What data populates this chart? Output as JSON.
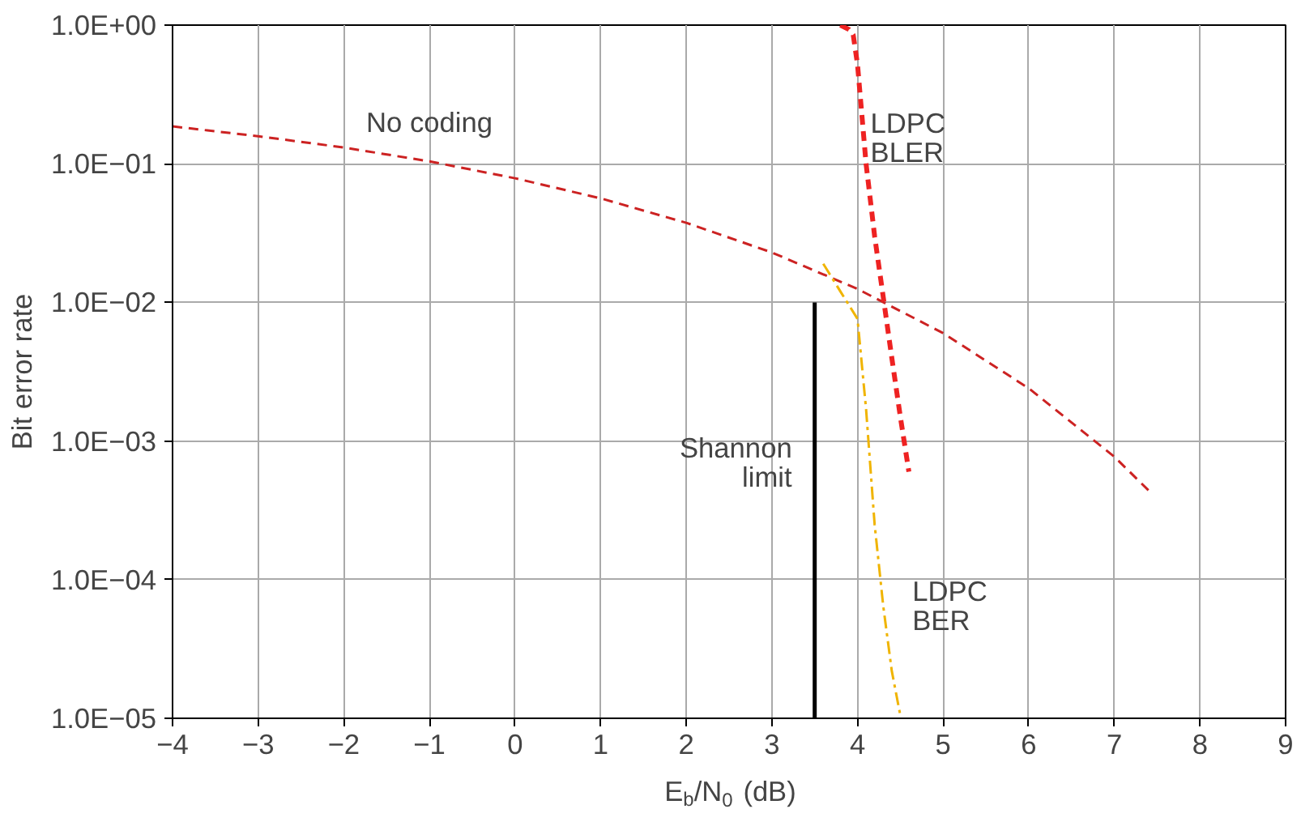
{
  "chart_data": {
    "type": "line",
    "xlabel": "E$_{b}$/N$_{0}$ (dB)",
    "ylabel": "Bit error rate",
    "series": [
      {
        "color": "#cc2222",
        "line_style": "dashed",
        "x": [
          -4,
          -3,
          -2,
          -1,
          0,
          1,
          2,
          3,
          4,
          5,
          6,
          7,
          7.4
        ],
        "values": [
          0.186,
          0.158,
          0.131,
          0.104,
          0.0786,
          0.0563,
          0.0375,
          0.0229,
          0.0125,
          0.006,
          0.0024,
          0.00077,
          0.00044
        ]
      },
      {
        "color": "#ee2222",
        "line_style": "dashed",
        "x": [
          3.8,
          3.9,
          3.95,
          4.0,
          4.1,
          4.2,
          4.3,
          4.4,
          4.5,
          4.6
        ],
        "values": [
          1.0,
          0.93,
          0.85,
          0.52,
          0.1,
          0.03,
          0.011,
          0.004,
          0.0015,
          0.0006
        ]
      },
      {
        "color": "#f0b400",
        "line_style": "dashdot",
        "x": [
          3.6,
          3.8,
          4.0,
          4.1,
          4.2,
          4.3,
          4.4,
          4.5
        ],
        "values": [
          0.019,
          0.012,
          0.0076,
          0.0017,
          0.00025,
          6.5e-05,
          2.2e-05,
          1.05e-05
        ]
      },
      {
        "color": "#000000",
        "line_style": "solid",
        "x": [
          3.5,
          3.5
        ],
        "values": [
          1e-05,
          0.01
        ]
      }
    ],
    "annotations": [
      {
        "text": "No coding",
        "x": -1,
        "y": 0.104
      },
      {
        "text": "LDPC\nBLER",
        "x": 4.0,
        "y": 0.52
      },
      {
        "text": "LDPC\nBER",
        "x": 4.3,
        "y": 6.5e-05
      },
      {
        "text": "Shannon\nlimit",
        "x": 3.5,
        "y": 0.0007
      }
    ],
    "log": "y",
    "grid": true,
    "marker": "none",
    "xlim": [
      -4,
      9
    ],
    "ylim": [
      1e-05,
      1
    ],
    "xticks": [
      {
        "value": -4,
        "label": "−4"
      },
      {
        "value": -3,
        "label": "−3"
      },
      {
        "value": -2,
        "label": "−2"
      },
      {
        "value": -1,
        "label": "−1"
      },
      0,
      1,
      2,
      3,
      4,
      5,
      6,
      7,
      8,
      9
    ],
    "yticks": [
      {
        "value": 1e-05,
        "label": "1.0E−05"
      },
      {
        "value": 0.0001,
        "label": "1.0E−04"
      },
      {
        "value": 0.001,
        "label": "1.0E−03"
      },
      {
        "value": 0.01,
        "label": "1.0E−02"
      },
      {
        "value": 0.1,
        "label": "1.0E−01"
      },
      {
        "value": 1,
        "label": "1.0E+00"
      }
    ]
  }
}
